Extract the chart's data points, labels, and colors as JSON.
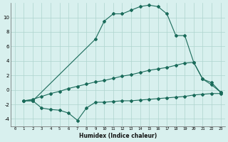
{
  "xlabel": "Humidex (Indice chaleur)",
  "bg_color": "#d8f0ee",
  "line_color": "#1a6b5a",
  "grid_color": "#aed4ce",
  "xlim": [
    -0.5,
    23.5
  ],
  "ylim": [
    -5,
    12
  ],
  "xticks": [
    0,
    1,
    2,
    3,
    4,
    5,
    6,
    7,
    8,
    9,
    10,
    11,
    12,
    13,
    14,
    15,
    16,
    17,
    18,
    19,
    20,
    21,
    22,
    23
  ],
  "yticks": [
    -4,
    -2,
    0,
    2,
    4,
    6,
    8,
    10
  ],
  "curve1_x": [
    1,
    2,
    3,
    4,
    5,
    6,
    7,
    8,
    9,
    10,
    11,
    12,
    13,
    14,
    15,
    16,
    17,
    18,
    19,
    20,
    21,
    22,
    23
  ],
  "curve1_y": [
    -1.5,
    -1.5,
    -2.5,
    -2.7,
    -2.8,
    -3.2,
    -4.2,
    -2.5,
    -1.7,
    -1.7,
    -1.6,
    -1.5,
    -1.5,
    -1.4,
    -1.3,
    -1.2,
    -1.1,
    -1.0,
    -0.9,
    -0.7,
    -0.6,
    -0.5,
    -0.5
  ],
  "curve2_x": [
    1,
    2,
    3,
    4,
    5,
    6,
    7,
    8,
    9,
    10,
    11,
    12,
    13,
    14,
    15,
    16,
    17,
    18,
    19,
    20,
    21,
    22,
    23
  ],
  "curve2_y": [
    -1.5,
    -1.3,
    -0.9,
    -0.5,
    -0.2,
    0.2,
    0.5,
    0.8,
    1.1,
    1.3,
    1.6,
    1.9,
    2.1,
    2.4,
    2.7,
    2.9,
    3.1,
    3.4,
    3.7,
    3.8,
    1.5,
    0.7,
    -0.3
  ],
  "curve3_x": [
    1,
    2,
    9,
    10,
    11,
    12,
    13,
    14,
    15,
    16,
    17,
    18,
    19,
    20,
    21,
    22,
    23
  ],
  "curve3_y": [
    -1.5,
    -1.5,
    7.0,
    9.5,
    10.5,
    10.5,
    11.0,
    11.5,
    11.7,
    11.5,
    10.5,
    7.5,
    7.5,
    3.8,
    1.5,
    1.0,
    -0.3
  ]
}
